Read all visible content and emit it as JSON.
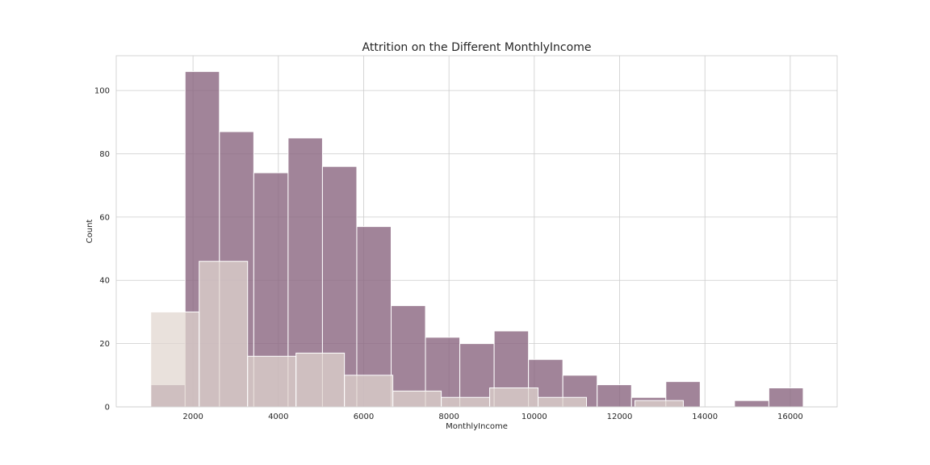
{
  "chart_data": {
    "type": "bar",
    "title": "Attrition on the Different MonthlyIncome",
    "xlabel": "MonthlyIncome",
    "ylabel": "Count",
    "xlim": [
      200,
      17100
    ],
    "ylim": [
      0,
      111
    ],
    "x_ticks": [
      2000,
      4000,
      6000,
      8000,
      10000,
      12000,
      14000,
      16000
    ],
    "y_ticks": [
      0,
      20,
      40,
      60,
      80,
      100
    ],
    "grid": true,
    "legend": "none",
    "colors": {
      "series_0_fill": "#8a6580",
      "series_0_alpha": 0.8,
      "series_1_fill": "#e0d6cf",
      "series_1_alpha": 0.72,
      "bar_edge": "#ffffff",
      "grid": "#cccccc",
      "frame": "#cccccc"
    },
    "series": [
      {
        "bin_edges": [
          1009,
          1814,
          2619,
          3424,
          4229,
          5034,
          5839,
          6644,
          7449,
          8254,
          9059,
          9864,
          10669,
          11474,
          12279,
          13084,
          13889,
          14694,
          15499,
          16304
        ],
        "counts": [
          7,
          106,
          87,
          74,
          85,
          76,
          57,
          32,
          22,
          20,
          24,
          15,
          10,
          7,
          3,
          8,
          0,
          2,
          6
        ]
      },
      {
        "bin_edges": [
          1009,
          2144,
          3279,
          4414,
          5549,
          6684,
          7819,
          8954,
          10089,
          11224,
          12359,
          13494
        ],
        "counts": [
          30,
          46,
          16,
          17,
          10,
          5,
          3,
          6,
          3,
          0,
          2
        ]
      }
    ]
  }
}
